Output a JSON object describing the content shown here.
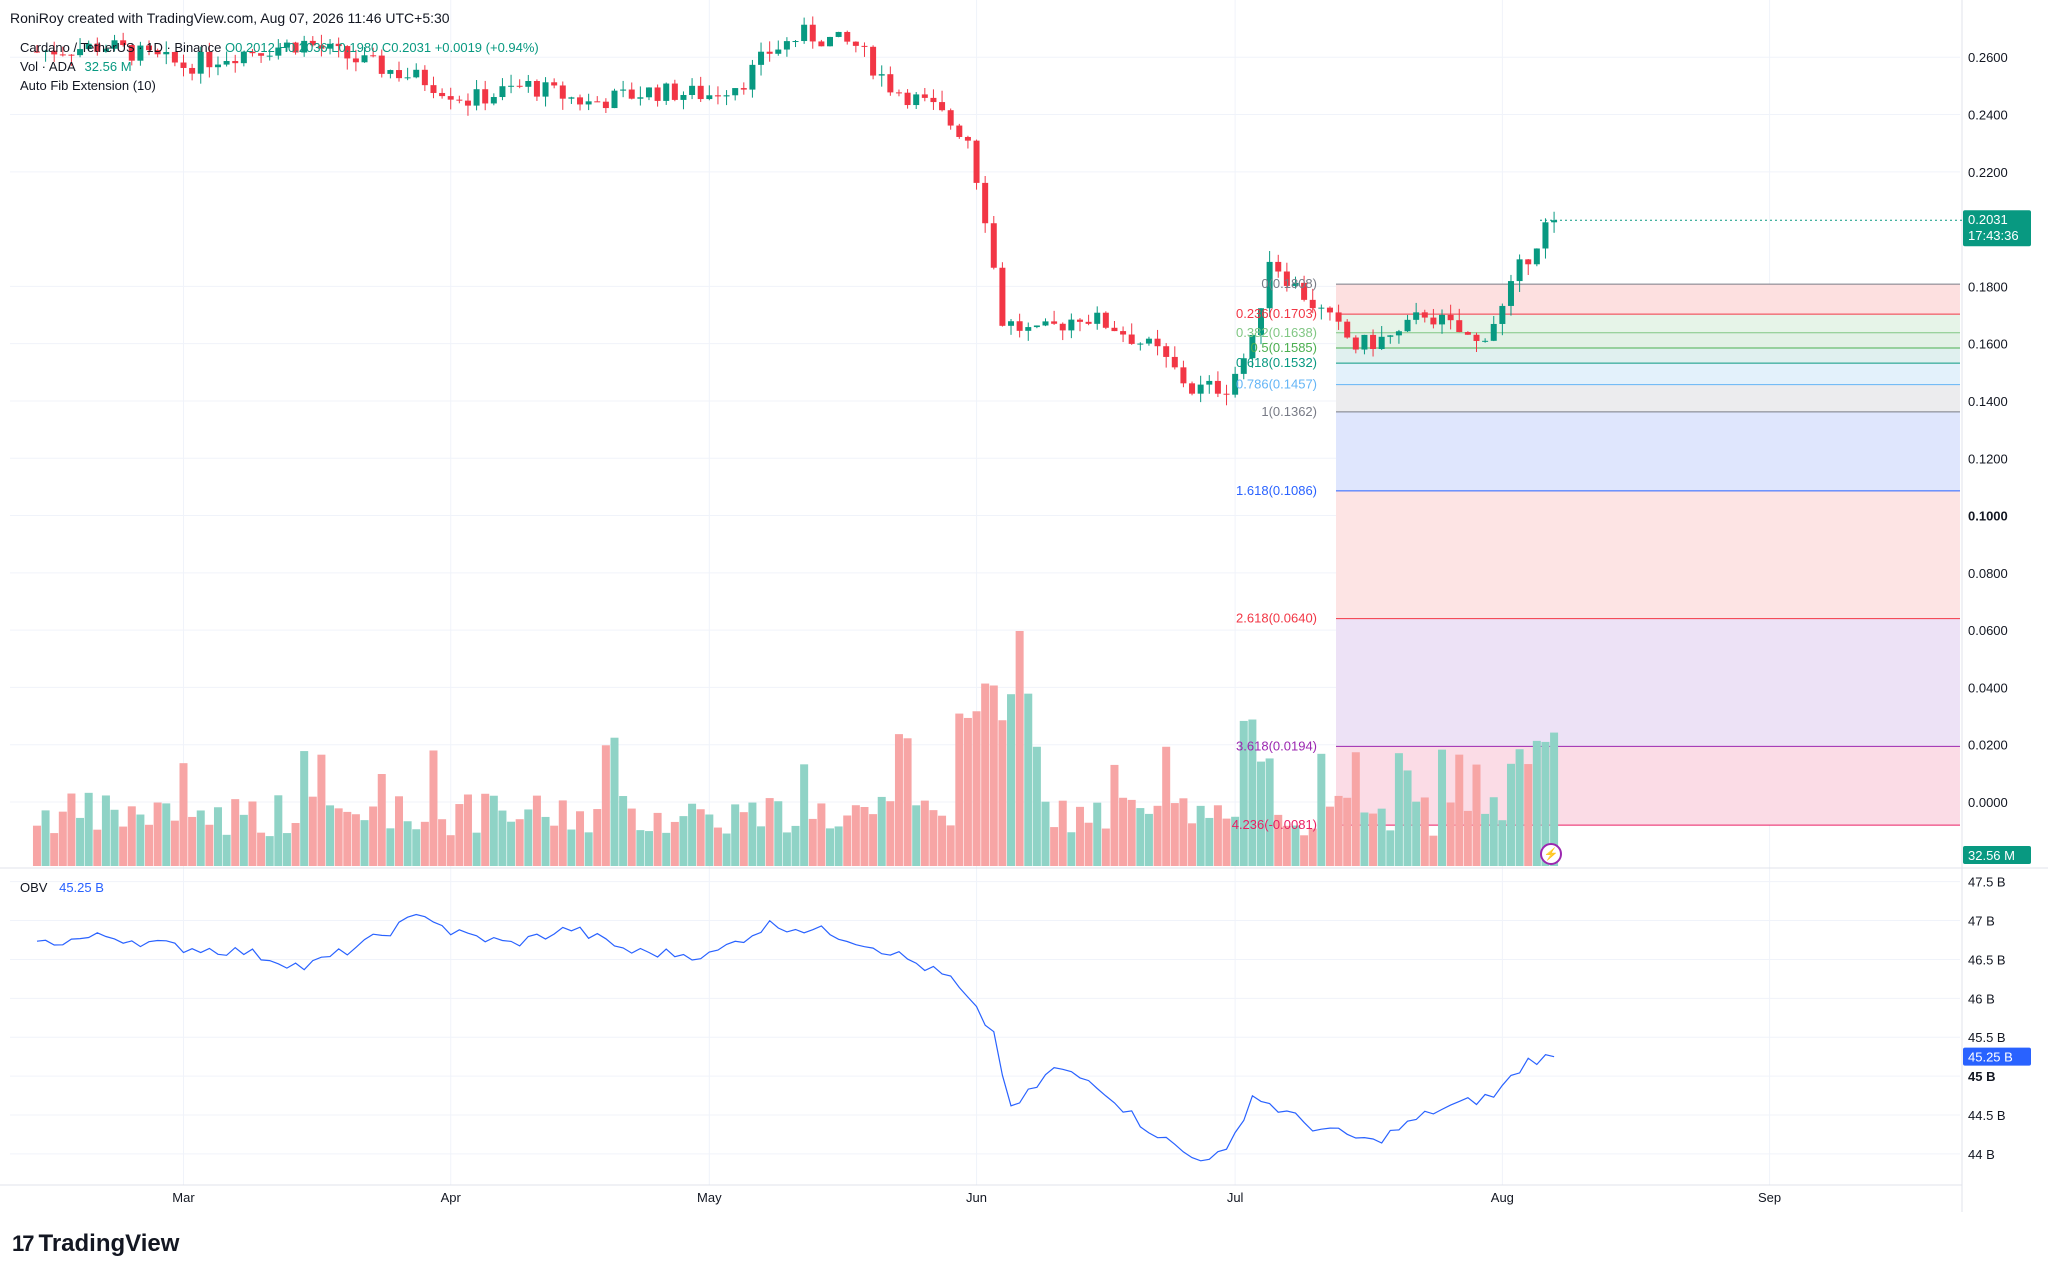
{
  "header": {
    "credit": "RoniRoy created with TradingView.com, Aug 07, 2026 11:46 UTC+5:30",
    "symbol": "Cardano / TetherUS · 1D · Binance",
    "ohlc_o": "O0.2012",
    "ohlc_h": "H0.2036",
    "ohlc_l": "L0.1980",
    "ohlc_c": "C0.2031",
    "change": "+0.0019 (+0.94%)",
    "volume_label": "Vol · ADA",
    "volume_value": "32.56 M",
    "indicator_label": "Auto Fib Extension (10)"
  },
  "obv": {
    "label": "OBV",
    "value": "45.25 B"
  },
  "brand": {
    "logo_text": "TradingView",
    "logo_mark": "17"
  },
  "colors": {
    "up": "#089981",
    "down": "#f23645",
    "vol_up": "#8fd3c6",
    "vol_down": "#f7a5a5",
    "obv_line": "#2962ff"
  },
  "chart_data": [
    {
      "type": "candlestick",
      "title": "Cardano / TetherUS · 1D · Binance",
      "x_labels": [
        "Mar",
        "Apr",
        "May",
        "Jun",
        "Jul",
        "Aug",
        "Sep"
      ],
      "y_ticks": [
        "0.2600",
        "0.2400",
        "0.2200",
        "0.1800",
        "0.1600",
        "0.1400",
        "0.1200",
        "0.1000",
        "0.0800",
        "0.0600",
        "0.0400",
        "0.0200",
        "0.0000"
      ],
      "ylim": [
        -0.022,
        0.273
      ],
      "last_price": "0.2031",
      "countdown": "17:43:36",
      "approx_close_path": [
        [
          "2026-02-12",
          0.262
        ],
        [
          "2026-02-20",
          0.264
        ],
        [
          "2026-03-01",
          0.257
        ],
        [
          "2026-03-08",
          0.262
        ],
        [
          "2026-03-15",
          0.265
        ],
        [
          "2026-03-22",
          0.258
        ],
        [
          "2026-03-29",
          0.252
        ],
        [
          "2026-04-03",
          0.245
        ],
        [
          "2026-04-10",
          0.25
        ],
        [
          "2026-04-17",
          0.244
        ],
        [
          "2026-04-24",
          0.248
        ],
        [
          "2026-05-01",
          0.247
        ],
        [
          "2026-05-05",
          0.252
        ],
        [
          "2026-05-08",
          0.262
        ],
        [
          "2026-05-12",
          0.268
        ],
        [
          "2026-05-18",
          0.264
        ],
        [
          "2026-05-22",
          0.25
        ],
        [
          "2026-05-27",
          0.242
        ],
        [
          "2026-05-31",
          0.232
        ],
        [
          "2026-06-02",
          0.205
        ],
        [
          "2026-06-04",
          0.168
        ],
        [
          "2026-06-08",
          0.163
        ],
        [
          "2026-06-13",
          0.17
        ],
        [
          "2026-06-17",
          0.166
        ],
        [
          "2026-06-22",
          0.157
        ],
        [
          "2026-06-26",
          0.144
        ],
        [
          "2026-06-30",
          0.145
        ],
        [
          "2026-07-03",
          0.16
        ],
        [
          "2026-07-05",
          0.19
        ],
        [
          "2026-07-08",
          0.18
        ],
        [
          "2026-07-12",
          0.168
        ],
        [
          "2026-07-15",
          0.159
        ],
        [
          "2026-07-20",
          0.163
        ],
        [
          "2026-07-23",
          0.171
        ],
        [
          "2026-07-27",
          0.164
        ],
        [
          "2026-07-29",
          0.16
        ],
        [
          "2026-08-01",
          0.172
        ],
        [
          "2026-08-03",
          0.186
        ],
        [
          "2026-08-06",
          0.201
        ],
        [
          "2026-08-07",
          0.2031
        ]
      ]
    },
    {
      "type": "fib_extension",
      "levels": [
        {
          "ratio": "0",
          "label": "0(0.1808)",
          "value": 0.1808
        },
        {
          "ratio": "0.236",
          "label": "0.236(0.1703)",
          "value": 0.1703
        },
        {
          "ratio": "0.382",
          "label": "0.382(0.1638)",
          "value": 0.1638
        },
        {
          "ratio": "0.5",
          "label": "0.5(0.1585)",
          "value": 0.1585
        },
        {
          "ratio": "0.618",
          "label": "0.618(0.1532)",
          "value": 0.1532
        },
        {
          "ratio": "0.786",
          "label": "0.786(0.1457)",
          "value": 0.1457
        },
        {
          "ratio": "1",
          "label": "1(0.1362)",
          "value": 0.1362
        },
        {
          "ratio": "1.618",
          "label": "1.618(0.1086)",
          "value": 0.1086
        },
        {
          "ratio": "2.618",
          "label": "2.618(0.0640)",
          "value": 0.064
        },
        {
          "ratio": "3.618",
          "label": "3.618(0.0194)",
          "value": 0.0194
        },
        {
          "ratio": "4.236",
          "label": "4.236(-0.0081)",
          "value": -0.0081
        }
      ],
      "level_colors": [
        "#787b86",
        "#f23645",
        "#81c784",
        "#4caf50",
        "#089981",
        "#64b5f6",
        "#787b86",
        "#2962ff",
        "#f23645",
        "#9c27b0",
        "#e91e63"
      ],
      "zone_fills": [
        "#fde0e0",
        "#e6f4e8",
        "#e2f1e6",
        "#e0f0ef",
        "#e3f1fb",
        "#ececee",
        "#dfe6fd",
        "#fde4e4",
        "#ede2f6",
        "#fbdce6"
      ]
    },
    {
      "type": "line",
      "series": [
        {
          "name": "OBV"
        }
      ],
      "y_ticks": [
        "47.5 B",
        "47 B",
        "46.5 B",
        "46 B",
        "45.5 B",
        "45 B",
        "44.5 B",
        "44 B"
      ],
      "ylim": [
        43.6,
        47.65
      ],
      "last_value": "45.25 B",
      "approx_path": [
        [
          "2026-02-12",
          46.7
        ],
        [
          "2026-02-20",
          46.8
        ],
        [
          "2026-03-01",
          46.65
        ],
        [
          "2026-03-08",
          46.6
        ],
        [
          "2026-03-15",
          46.4
        ],
        [
          "2026-03-22",
          46.7
        ],
        [
          "2026-03-29",
          47.1
        ],
        [
          "2026-04-01",
          46.85
        ],
        [
          "2026-04-08",
          46.7
        ],
        [
          "2026-04-15",
          46.9
        ],
        [
          "2026-04-22",
          46.6
        ],
        [
          "2026-05-01",
          46.55
        ],
        [
          "2026-05-08",
          46.95
        ],
        [
          "2026-05-15",
          46.85
        ],
        [
          "2026-05-22",
          46.6
        ],
        [
          "2026-05-29",
          46.25
        ],
        [
          "2026-06-03",
          45.55
        ],
        [
          "2026-06-05",
          44.55
        ],
        [
          "2026-06-10",
          45.1
        ],
        [
          "2026-06-15",
          44.9
        ],
        [
          "2026-06-20",
          44.4
        ],
        [
          "2026-06-26",
          43.95
        ],
        [
          "2026-06-30",
          44.0
        ],
        [
          "2026-07-03",
          44.75
        ],
        [
          "2026-07-10",
          44.35
        ],
        [
          "2026-07-17",
          44.15
        ],
        [
          "2026-07-24",
          44.55
        ],
        [
          "2026-07-31",
          44.75
        ],
        [
          "2026-08-04",
          45.2
        ],
        [
          "2026-08-07",
          45.25
        ]
      ]
    }
  ]
}
